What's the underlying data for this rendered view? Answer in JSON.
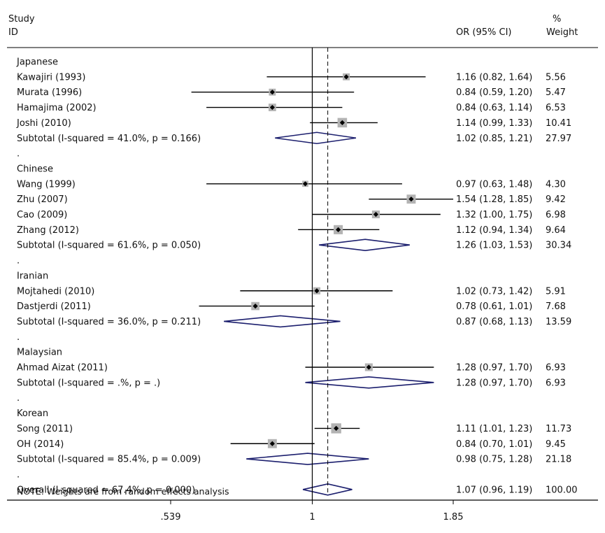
{
  "chart_data": {
    "type": "forest",
    "header": {
      "study": "Study",
      "id": "ID",
      "effect": "OR (95% CI)",
      "weight_pct": "%",
      "weight": "Weight"
    },
    "x_ticks": [
      {
        "value": 0.539,
        "label": ".539"
      },
      {
        "value": 1,
        "label": "1"
      },
      {
        "value": 1.85,
        "label": "1.85"
      }
    ],
    "xlim": [
      0.539,
      1.85
    ],
    "x_scale": "log",
    "null_line": 1,
    "overall_line": 1.07,
    "rows": [
      {
        "kind": "group",
        "label": "Japanese"
      },
      {
        "kind": "study",
        "label": "Kawajiri (1993)",
        "or": 1.16,
        "lo": 0.82,
        "hi": 1.64,
        "ci_text": "1.16 (0.82, 1.64)",
        "weight": "5.56"
      },
      {
        "kind": "study",
        "label": "Murata (1996)",
        "or": 0.84,
        "lo": 0.59,
        "hi": 1.2,
        "ci_text": "0.84 (0.59, 1.20)",
        "weight": "5.47"
      },
      {
        "kind": "study",
        "label": "Hamajima (2002)",
        "or": 0.84,
        "lo": 0.63,
        "hi": 1.14,
        "ci_text": "0.84 (0.63, 1.14)",
        "weight": "6.53"
      },
      {
        "kind": "study",
        "label": "Joshi (2010)",
        "or": 1.14,
        "lo": 0.99,
        "hi": 1.33,
        "ci_text": "1.14 (0.99, 1.33)",
        "weight": "10.41"
      },
      {
        "kind": "subtotal",
        "label": "Subtotal  (I-squared = 41.0%, p = 0.166)",
        "or": 1.02,
        "lo": 0.85,
        "hi": 1.21,
        "ci_text": "1.02 (0.85, 1.21)",
        "weight": "27.97"
      },
      {
        "kind": "spacer",
        "label": "."
      },
      {
        "kind": "group",
        "label": "Chinese"
      },
      {
        "kind": "study",
        "label": "Wang (1999)",
        "or": 0.97,
        "lo": 0.63,
        "hi": 1.48,
        "ci_text": "0.97 (0.63, 1.48)",
        "weight": "4.30"
      },
      {
        "kind": "study",
        "label": "Zhu (2007)",
        "or": 1.54,
        "lo": 1.28,
        "hi": 1.85,
        "ci_text": "1.54 (1.28, 1.85)",
        "weight": "9.42"
      },
      {
        "kind": "study",
        "label": "Cao (2009)",
        "or": 1.32,
        "lo": 1.0,
        "hi": 1.75,
        "ci_text": "1.32 (1.00, 1.75)",
        "weight": "6.98"
      },
      {
        "kind": "study",
        "label": "Zhang (2012)",
        "or": 1.12,
        "lo": 0.94,
        "hi": 1.34,
        "ci_text": "1.12 (0.94, 1.34)",
        "weight": "9.64"
      },
      {
        "kind": "subtotal",
        "label": "Subtotal  (I-squared = 61.6%, p = 0.050)",
        "or": 1.26,
        "lo": 1.03,
        "hi": 1.53,
        "ci_text": "1.26 (1.03, 1.53)",
        "weight": "30.34"
      },
      {
        "kind": "spacer",
        "label": "."
      },
      {
        "kind": "group",
        "label": "Iranian"
      },
      {
        "kind": "study",
        "label": "Mojtahedi (2010)",
        "or": 1.02,
        "lo": 0.73,
        "hi": 1.42,
        "ci_text": "1.02 (0.73, 1.42)",
        "weight": "5.91"
      },
      {
        "kind": "study",
        "label": "Dastjerdi (2011)",
        "or": 0.78,
        "lo": 0.61,
        "hi": 1.01,
        "ci_text": "0.78 (0.61, 1.01)",
        "weight": "7.68"
      },
      {
        "kind": "subtotal",
        "label": "Subtotal  (I-squared = 36.0%, p = 0.211)",
        "or": 0.87,
        "lo": 0.68,
        "hi": 1.13,
        "ci_text": "0.87 (0.68, 1.13)",
        "weight": "13.59"
      },
      {
        "kind": "spacer",
        "label": "."
      },
      {
        "kind": "group",
        "label": "Malaysian"
      },
      {
        "kind": "study",
        "label": "Ahmad Aizat (2011)",
        "or": 1.28,
        "lo": 0.97,
        "hi": 1.7,
        "ci_text": "1.28 (0.97, 1.70)",
        "weight": "6.93"
      },
      {
        "kind": "subtotal",
        "label": "Subtotal  (I-squared = .%, p = .)",
        "or": 1.28,
        "lo": 0.97,
        "hi": 1.7,
        "ci_text": "1.28 (0.97, 1.70)",
        "weight": "6.93"
      },
      {
        "kind": "spacer",
        "label": "."
      },
      {
        "kind": "group",
        "label": "Korean"
      },
      {
        "kind": "study",
        "label": "Song (2011)",
        "or": 1.11,
        "lo": 1.01,
        "hi": 1.23,
        "ci_text": "1.11 (1.01, 1.23)",
        "weight": "11.73"
      },
      {
        "kind": "study",
        "label": "OH (2014)",
        "or": 0.84,
        "lo": 0.7,
        "hi": 1.01,
        "ci_text": "0.84 (0.70, 1.01)",
        "weight": "9.45"
      },
      {
        "kind": "subtotal",
        "label": "Subtotal  (I-squared = 85.4%, p = 0.009)",
        "or": 0.98,
        "lo": 0.75,
        "hi": 1.28,
        "ci_text": "0.98 (0.75, 1.28)",
        "weight": "21.18"
      },
      {
        "kind": "spacer",
        "label": "."
      },
      {
        "kind": "overall",
        "label": "Overall  (I-squared = 67.4%, p = 0.000)",
        "or": 1.07,
        "lo": 0.96,
        "hi": 1.19,
        "ci_text": "1.07 (0.96, 1.19)",
        "weight": "100.00"
      }
    ],
    "note": "NOTE: Weights are from random effects analysis",
    "colors": {
      "diamond": "#1c1f6e",
      "ci_line": "#000000",
      "weight_box": "#b3b3b3",
      "point": "#000000"
    }
  }
}
